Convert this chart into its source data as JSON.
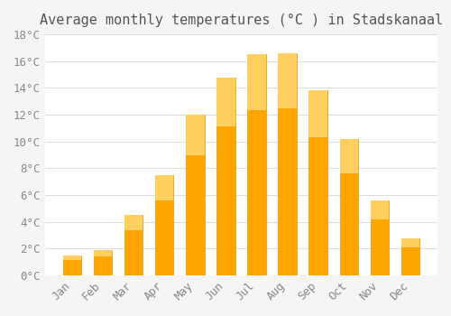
{
  "title": "Average monthly temperatures (°C ) in Stadskanaal",
  "months": [
    "Jan",
    "Feb",
    "Mar",
    "Apr",
    "May",
    "Jun",
    "Jul",
    "Aug",
    "Sep",
    "Oct",
    "Nov",
    "Dec"
  ],
  "values": [
    1.5,
    1.9,
    4.5,
    7.5,
    12.0,
    14.8,
    16.5,
    16.6,
    13.8,
    10.2,
    5.6,
    2.8
  ],
  "bar_color": "#FFA500",
  "bar_edge_color": "#E8980A",
  "ylim": [
    0,
    18
  ],
  "ytick_step": 2,
  "background_color": "#f5f5f5",
  "plot_bg_color": "#ffffff",
  "grid_color": "#dddddd",
  "title_fontsize": 11,
  "tick_fontsize": 9,
  "bar_width": 0.6
}
